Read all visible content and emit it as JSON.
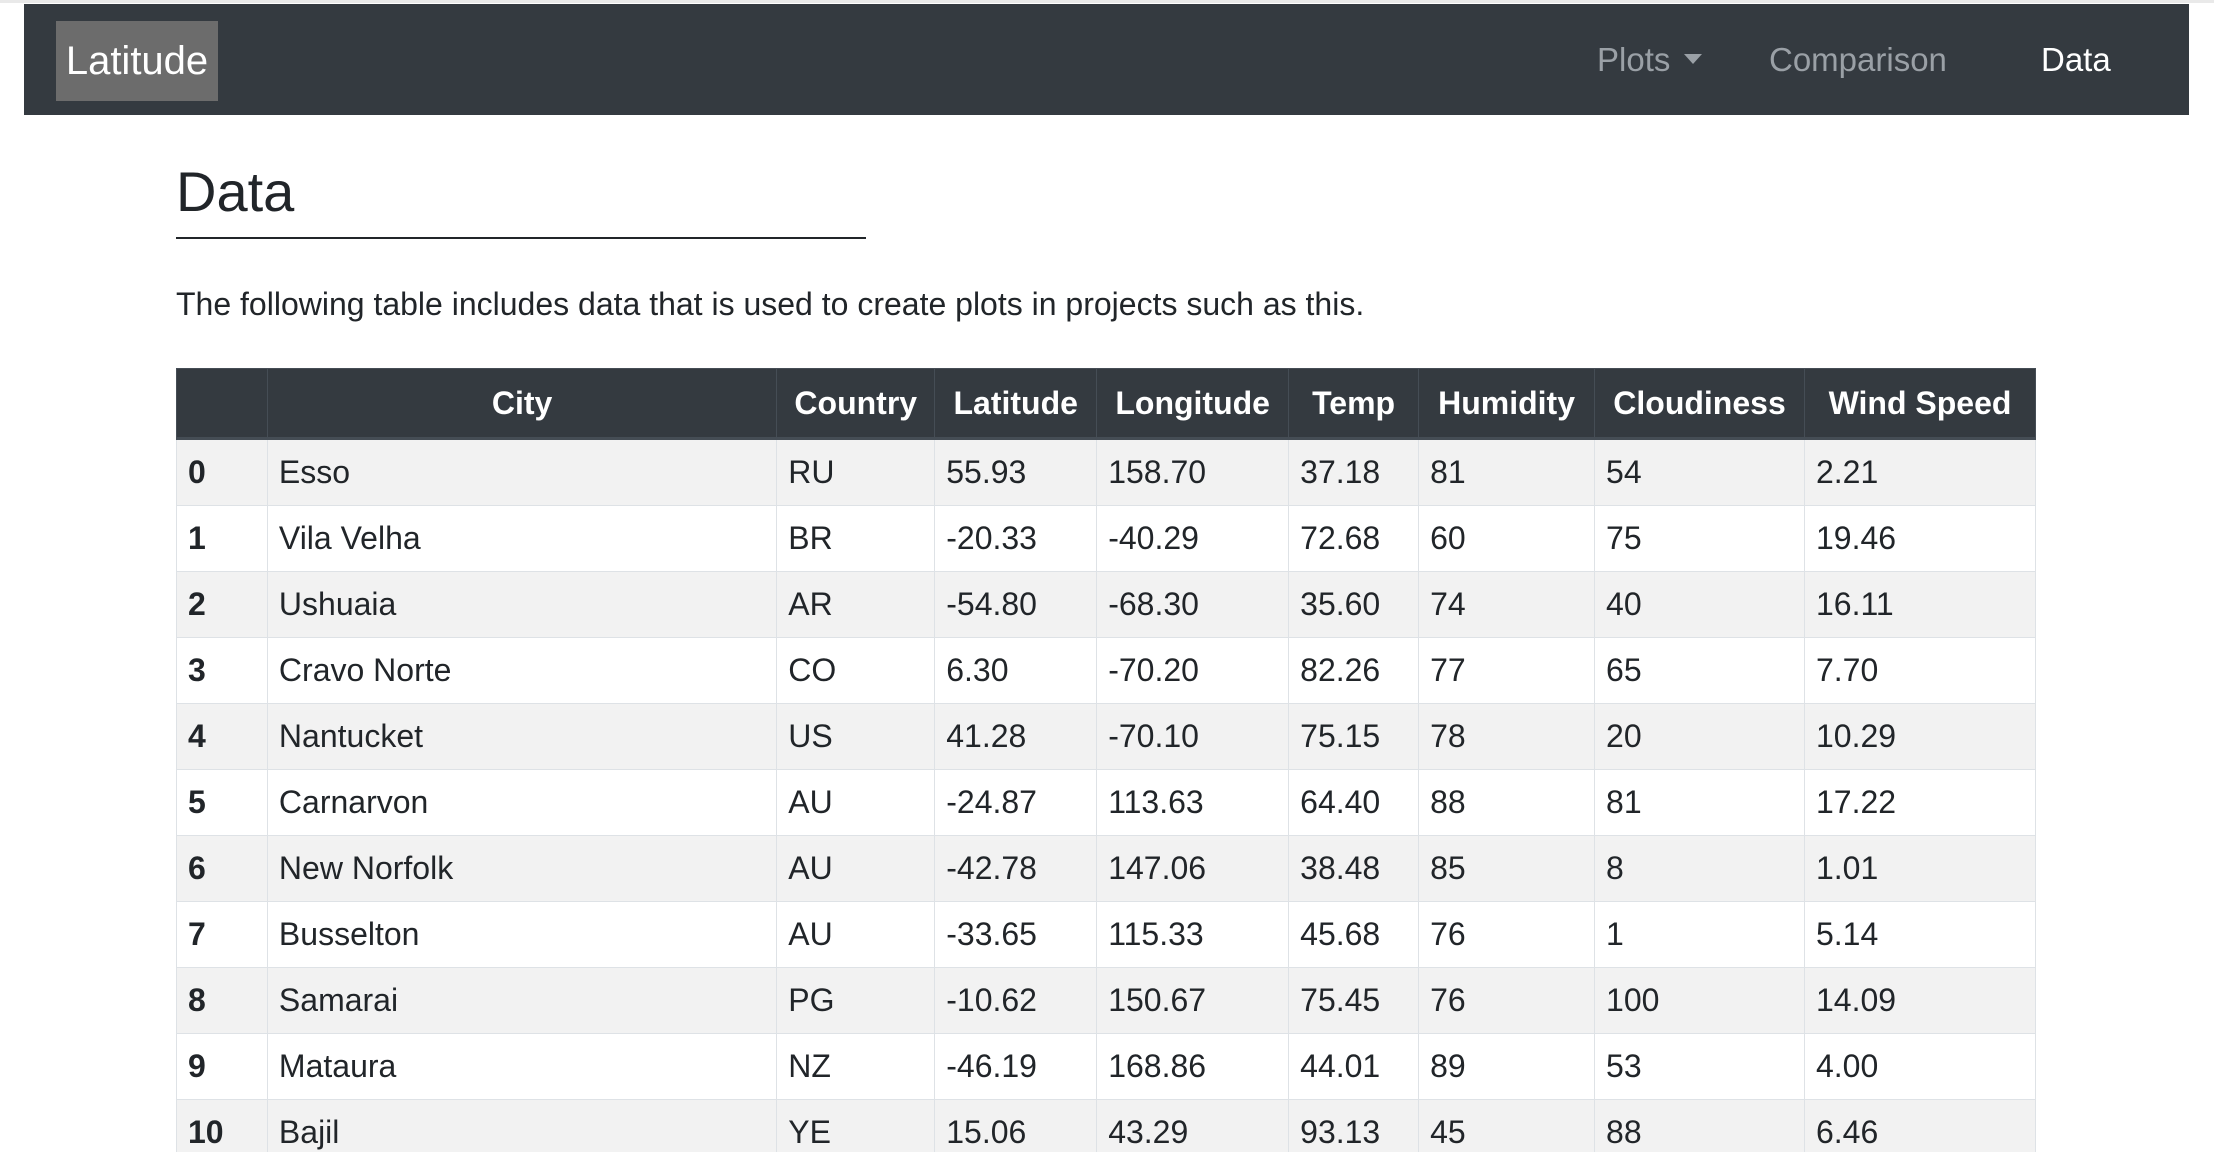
{
  "navbar": {
    "brand": "Latitude",
    "items": [
      {
        "label": "Plots",
        "dropdown": true
      },
      {
        "label": "Comparison"
      },
      {
        "label": "Data",
        "active": true
      }
    ]
  },
  "main": {
    "title": "Data",
    "intro": "The following table includes data that is used to create plots in projects such as this."
  },
  "table": {
    "columns": [
      "",
      "City",
      "Country",
      "Latitude",
      "Longitude",
      "Temp",
      "Humidity",
      "Cloudiness",
      "Wind Speed"
    ],
    "rows": [
      [
        "0",
        "Esso",
        "RU",
        "55.93",
        "158.70",
        "37.18",
        "81",
        "54",
        "2.21"
      ],
      [
        "1",
        "Vila Velha",
        "BR",
        "-20.33",
        "-40.29",
        "72.68",
        "60",
        "75",
        "19.46"
      ],
      [
        "2",
        "Ushuaia",
        "AR",
        "-54.80",
        "-68.30",
        "35.60",
        "74",
        "40",
        "16.11"
      ],
      [
        "3",
        "Cravo Norte",
        "CO",
        "6.30",
        "-70.20",
        "82.26",
        "77",
        "65",
        "7.70"
      ],
      [
        "4",
        "Nantucket",
        "US",
        "41.28",
        "-70.10",
        "75.15",
        "78",
        "20",
        "10.29"
      ],
      [
        "5",
        "Carnarvon",
        "AU",
        "-24.87",
        "113.63",
        "64.40",
        "88",
        "81",
        "17.22"
      ],
      [
        "6",
        "New Norfolk",
        "AU",
        "-42.78",
        "147.06",
        "38.48",
        "85",
        "8",
        "1.01"
      ],
      [
        "7",
        "Busselton",
        "AU",
        "-33.65",
        "115.33",
        "45.68",
        "76",
        "1",
        "5.14"
      ],
      [
        "8",
        "Samarai",
        "PG",
        "-10.62",
        "150.67",
        "75.45",
        "76",
        "100",
        "14.09"
      ],
      [
        "9",
        "Mataura",
        "NZ",
        "-46.19",
        "168.86",
        "44.01",
        "89",
        "53",
        "4.00"
      ],
      [
        "10",
        "Bajil",
        "YE",
        "15.06",
        "43.29",
        "93.13",
        "45",
        "88",
        "6.46"
      ]
    ]
  },
  "colors": {
    "navbar_bg": "#343a40",
    "brand_bg": "#6c6c6c",
    "nav_inactive": "#9aa0a6",
    "nav_active": "#ffffff",
    "table_header_bg": "#343a40",
    "row_stripe": "#f2f2f2"
  }
}
